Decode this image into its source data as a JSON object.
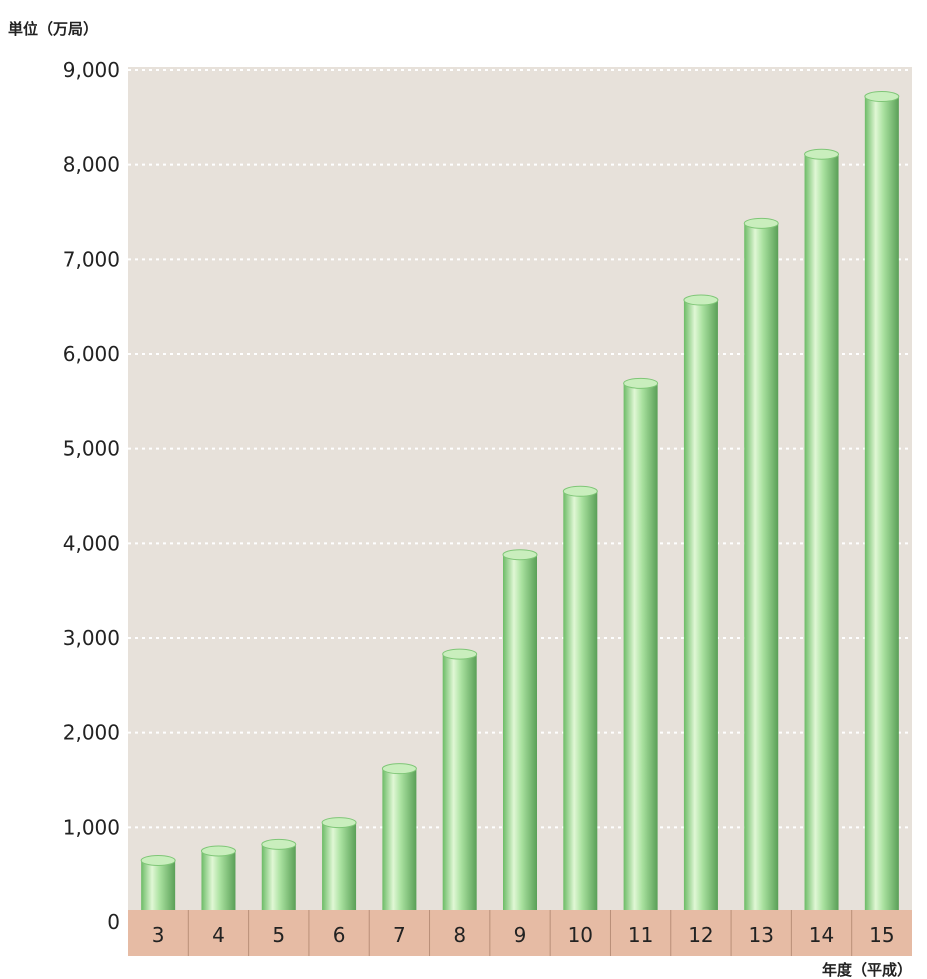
{
  "chart_data": {
    "type": "bar",
    "title": "",
    "ylabel": "単位（万局）",
    "xlabel": "年度（平成）",
    "categories": [
      "3",
      "4",
      "5",
      "6",
      "7",
      "8",
      "9",
      "10",
      "11",
      "12",
      "13",
      "14",
      "15"
    ],
    "values": [
      650,
      750,
      820,
      1050,
      1620,
      2830,
      3880,
      4550,
      5690,
      6570,
      7380,
      8110,
      8720
    ],
    "ylim": [
      0,
      9000
    ],
    "yticks": [
      0,
      1000,
      2000,
      3000,
      4000,
      5000,
      6000,
      7000,
      8000,
      9000
    ],
    "ytick_labels": [
      "0",
      "1,000",
      "2,000",
      "3,000",
      "4,000",
      "5,000",
      "6,000",
      "7,000",
      "8,000",
      "9,000"
    ],
    "grid": true,
    "legend": "none",
    "colors": {
      "plot_background": "#e7e1da",
      "category_band": "#e6bba4",
      "bar_light": "#ddf5d0",
      "bar_mid": "#8fd486",
      "bar_dark": "#5fae5c",
      "gridline": "#ffffff"
    }
  }
}
